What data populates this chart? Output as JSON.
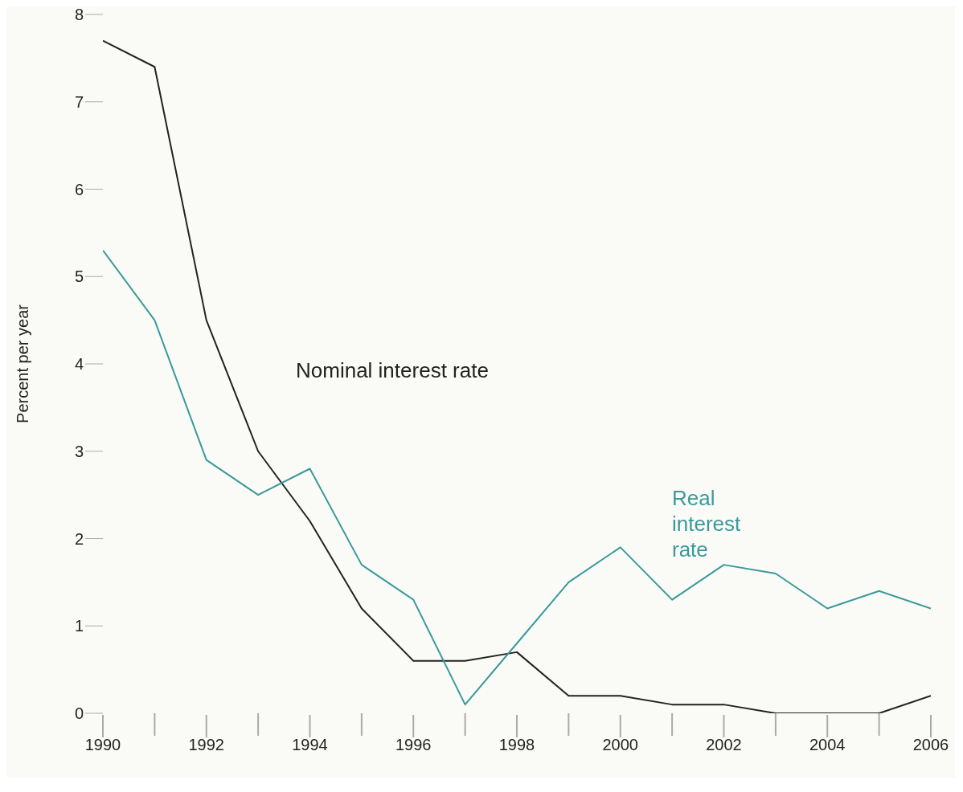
{
  "chart_data": {
    "type": "line",
    "ylabel": "Percent per year",
    "x": [
      1990,
      1991,
      1992,
      1993,
      1994,
      1995,
      1996,
      1997,
      1998,
      1999,
      2000,
      2001,
      2002,
      2003,
      2004,
      2005,
      2006
    ],
    "series": [
      {
        "name": "Nominal interest rate",
        "color": "#222222",
        "values": [
          7.7,
          7.4,
          4.5,
          3.0,
          2.2,
          1.2,
          0.6,
          0.6,
          0.7,
          0.2,
          0.2,
          0.1,
          0.1,
          0,
          0,
          0,
          0.2
        ]
      },
      {
        "name": "Real interest rate",
        "color": "#3a9a9a",
        "values": [
          5.3,
          4.5,
          2.9,
          2.5,
          2.8,
          1.7,
          1.3,
          0.1,
          0.8,
          1.5,
          1.9,
          1.3,
          1.7,
          1.6,
          1.2,
          1.4,
          1.2
        ]
      }
    ],
    "xlim": [
      1990,
      2006
    ],
    "xticks": [
      1990,
      1992,
      1994,
      1996,
      1998,
      2000,
      2002,
      2004,
      2006
    ],
    "ylim": [
      0,
      8
    ],
    "yticks": [
      0,
      1,
      2,
      3,
      4,
      5,
      6,
      7,
      8
    ],
    "grid": false,
    "legend": false,
    "marker": "none",
    "line_style": "solid"
  }
}
